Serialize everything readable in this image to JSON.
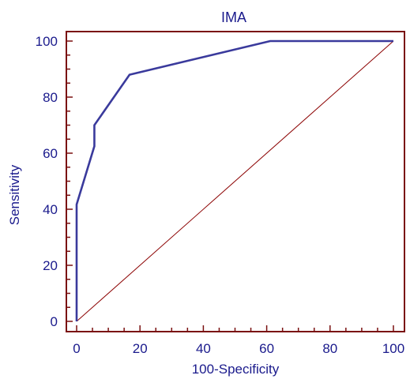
{
  "chart_data": {
    "type": "line",
    "title": "IMA",
    "xlabel": "100-Specificity",
    "ylabel": "Sensitivity",
    "xlim": [
      0,
      100
    ],
    "ylim": [
      0,
      100
    ],
    "x_ticks": [
      0,
      20,
      40,
      60,
      80,
      100
    ],
    "y_ticks": [
      0,
      20,
      40,
      60,
      80,
      100
    ],
    "x_tick_labels": [
      "0",
      "20",
      "40",
      "60",
      "80",
      "100"
    ],
    "y_tick_labels": [
      "0",
      "20",
      "40",
      "60",
      "80",
      "100"
    ],
    "grid": false,
    "series": [
      {
        "x": [
          0,
          0,
          5.6,
          5.6,
          16.7,
          61.1,
          100
        ],
        "y": [
          0,
          41.7,
          62.5,
          70.0,
          88.0,
          100,
          100
        ],
        "color": "#3a3a9c"
      },
      {
        "x": [
          0,
          100
        ],
        "y": [
          0,
          100
        ],
        "color": "#8b0000"
      }
    ],
    "colors": {
      "frame": "#7a1010",
      "text": "#1a1a8c"
    }
  }
}
